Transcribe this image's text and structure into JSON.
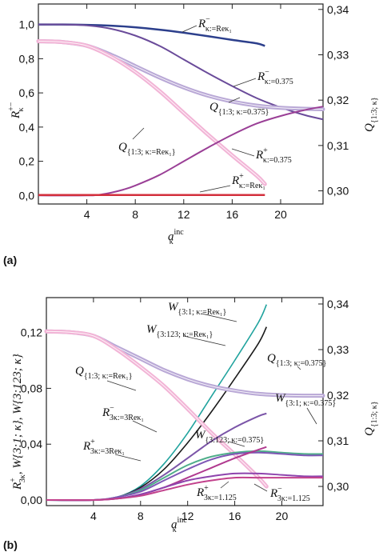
{
  "chart_data": [
    {
      "panel": "(a)",
      "type": "line",
      "xlabel": {
        "main": "a",
        "sup": "inc",
        "sub": "κ"
      },
      "ylabel_left": {
        "main": "R",
        "sup": "+−",
        "sub": "κ"
      },
      "ylabel_right": {
        "main": "Q",
        "sub": "{1:3; κ}"
      },
      "xlim": [
        0,
        23.5
      ],
      "ylim_left": [
        -0.05,
        1.12
      ],
      "ylim_right": [
        0.2971,
        0.3412
      ],
      "x_ticks": [
        4,
        8,
        12,
        16,
        20
      ],
      "y_ticks_left": [
        "0,0",
        "0,2",
        "0,4",
        "0,6",
        "0,8",
        "1,0"
      ],
      "y_tick_values_left": [
        0,
        0.2,
        0.4,
        0.6,
        0.8,
        1.0
      ],
      "y_ticks_right": [
        "0,30",
        "0,31",
        "0,32",
        "0,33",
        "0,34"
      ],
      "y_tick_values_right": [
        0.3,
        0.31,
        0.32,
        0.33,
        0.34
      ],
      "series": [
        {
          "color": "#2c3f8c",
          "width": 2.5,
          "axis": "left",
          "x": [
            0,
            2,
            4,
            6,
            8,
            10,
            12,
            14,
            16,
            18,
            18.7
          ],
          "y": [
            1.0,
            1.0,
            0.998,
            0.993,
            0.984,
            0.97,
            0.952,
            0.932,
            0.91,
            0.89,
            0.875
          ]
        },
        {
          "color": "#6a4b9a",
          "width": 2,
          "axis": "left",
          "x": [
            0,
            2,
            4,
            6,
            8,
            10,
            12,
            14,
            16,
            18,
            20,
            22,
            23.5
          ],
          "y": [
            1.0,
            1.0,
            0.995,
            0.975,
            0.935,
            0.875,
            0.795,
            0.715,
            0.64,
            0.57,
            0.515,
            0.47,
            0.445
          ]
        },
        {
          "color": "#b9a8d6",
          "width": 5,
          "axis": "right",
          "double": true,
          "x": [
            0,
            2,
            4,
            6,
            8,
            10,
            12,
            14,
            16,
            18,
            20,
            22,
            23.5
          ],
          "y": [
            0.333,
            0.3328,
            0.332,
            0.33,
            0.3275,
            0.325,
            0.3228,
            0.321,
            0.3197,
            0.3188,
            0.3183,
            0.3181,
            0.318
          ]
        },
        {
          "color": "#f2b4d6",
          "width": 5,
          "axis": "right",
          "double": true,
          "x": [
            0,
            2,
            4,
            6,
            8,
            10,
            12,
            14,
            16,
            18,
            18.7
          ],
          "y": [
            0.333,
            0.3328,
            0.332,
            0.3296,
            0.3262,
            0.322,
            0.3172,
            0.3124,
            0.3078,
            0.3034,
            0.3015
          ]
        },
        {
          "color": "#9a3f96",
          "width": 2,
          "axis": "left",
          "x": [
            0,
            4,
            5,
            6,
            7,
            8,
            10,
            12,
            14,
            16,
            18,
            20,
            22,
            23.5
          ],
          "y": [
            0,
            0,
            0.004,
            0.016,
            0.034,
            0.058,
            0.12,
            0.2,
            0.28,
            0.355,
            0.42,
            0.465,
            0.5,
            0.52
          ]
        },
        {
          "color": "#d32f3c",
          "width": 2.5,
          "axis": "left",
          "x": [
            0,
            4,
            8,
            12,
            16,
            18.7
          ],
          "y": [
            0.003,
            0.003,
            0.003,
            0.003,
            0.003,
            0.003
          ]
        }
      ],
      "annotations": [
        {
          "id": "a1",
          "main": "R",
          "sup": "−",
          "sub": "κ:=Reκ₁"
        },
        {
          "id": "a2",
          "main": "R",
          "sup": "−",
          "sub": "κ:=0.375"
        },
        {
          "id": "a3",
          "main": "Q",
          "sup": "",
          "sub": "{1:3; κ:=0.375}"
        },
        {
          "id": "a4",
          "main": "Q",
          "sup": "",
          "sub": "{1:3; κ:=Reκ₁}"
        },
        {
          "id": "a5",
          "main": "R",
          "sup": "+",
          "sub": "κ:=0.375"
        },
        {
          "id": "a6",
          "main": "R",
          "sup": "+",
          "sub": "κ:=Reκ₁"
        }
      ]
    },
    {
      "panel": "(b)",
      "type": "line",
      "xlabel": {
        "main": "a",
        "sup": "inc",
        "sub": "κ"
      },
      "ylabel_left": {
        "main": "R",
        "sup": "+",
        "sub": "3κ",
        "rest": ",  W{3:1; κ},  W{3:123; κ}"
      },
      "ylabel_right": {
        "main": "Q",
        "sub": "{1:3; κ}"
      },
      "xlim": [
        0,
        23.5
      ],
      "ylim_left": [
        -0.004,
        0.145
      ],
      "ylim_right": [
        0.2958,
        0.3414
      ],
      "x_ticks": [
        4,
        8,
        12,
        16,
        20
      ],
      "y_ticks_left": [
        "0,00",
        "0,04",
        "0,08",
        "0,12"
      ],
      "y_tick_values_left": [
        0,
        0.04,
        0.08,
        0.12
      ],
      "y_ticks_right": [
        "0,30",
        "0,31",
        "0,32",
        "0,33",
        "0,34"
      ],
      "y_tick_values_right": [
        0.3,
        0.31,
        0.32,
        0.33,
        0.34
      ],
      "series": [
        {
          "color": "#20a39e",
          "width": 1.6,
          "axis": "left",
          "x": [
            0,
            4,
            6,
            8,
            10,
            12,
            14,
            16,
            18,
            18.7
          ],
          "y": [
            0,
            0,
            0.002,
            0.01,
            0.026,
            0.048,
            0.074,
            0.1,
            0.127,
            0.14
          ]
        },
        {
          "color": "#1a1a1a",
          "width": 1.6,
          "axis": "left",
          "x": [
            0,
            4,
            6,
            8,
            10,
            12,
            14,
            16,
            18,
            18.7
          ],
          "y": [
            0,
            0,
            0.002,
            0.009,
            0.022,
            0.041,
            0.063,
            0.087,
            0.112,
            0.124
          ]
        },
        {
          "color": "#b9a8d6",
          "width": 5,
          "axis": "right",
          "double": true,
          "x": [
            0,
            2,
            4,
            6,
            8,
            10,
            12,
            14,
            16,
            18,
            20,
            22,
            23.5
          ],
          "y": [
            0.334,
            0.3338,
            0.333,
            0.3305,
            0.328,
            0.3255,
            0.3235,
            0.322,
            0.321,
            0.3203,
            0.32,
            0.3199,
            0.3199
          ]
        },
        {
          "color": "#f2b4d6",
          "width": 5,
          "axis": "right",
          "double": true,
          "x": [
            0,
            2,
            4,
            6,
            8,
            10,
            12,
            14,
            16,
            18,
            18.7
          ],
          "y": [
            0.334,
            0.3338,
            0.333,
            0.33,
            0.3262,
            0.322,
            0.317,
            0.3118,
            0.307,
            0.302,
            0.3
          ]
        },
        {
          "color": "#7b55a8",
          "width": 2,
          "axis": "left",
          "x": [
            0,
            4,
            6,
            8,
            10,
            12,
            14,
            16,
            18,
            18.7
          ],
          "y": [
            0,
            0,
            0.002,
            0.008,
            0.018,
            0.03,
            0.042,
            0.052,
            0.06,
            0.062
          ]
        },
        {
          "color": "#4fae8a",
          "width": 2,
          "axis": "left",
          "x": [
            0,
            4,
            6,
            8,
            10,
            12,
            14,
            16,
            18,
            20,
            22,
            23.5
          ],
          "y": [
            0,
            0,
            0.002,
            0.007,
            0.016,
            0.025,
            0.031,
            0.034,
            0.035,
            0.034,
            0.033,
            0.033
          ]
        },
        {
          "color": "#7e57b5",
          "width": 2,
          "axis": "left",
          "x": [
            0,
            4,
            6,
            8,
            10,
            12,
            14,
            16,
            18,
            20,
            22,
            23.5
          ],
          "y": [
            0,
            0,
            0.002,
            0.006,
            0.014,
            0.022,
            0.029,
            0.033,
            0.034,
            0.033,
            0.032,
            0.032
          ]
        },
        {
          "color": "#b03a8f",
          "width": 2,
          "axis": "left",
          "x": [
            0,
            4,
            6,
            8,
            10,
            12,
            14,
            16,
            18,
            18.7
          ],
          "y": [
            0,
            0,
            0.001,
            0.004,
            0.009,
            0.016,
            0.023,
            0.03,
            0.036,
            0.038
          ]
        },
        {
          "color": "#8e44ad",
          "width": 2,
          "axis": "left",
          "x": [
            0,
            4,
            6,
            8,
            10,
            12,
            14,
            16,
            18,
            20,
            22,
            23.5
          ],
          "y": [
            0,
            0,
            0.001,
            0.004,
            0.009,
            0.014,
            0.017,
            0.019,
            0.019,
            0.018,
            0.017,
            0.017
          ]
        },
        {
          "color": "#c2418c",
          "width": 2,
          "axis": "left",
          "x": [
            0,
            4,
            6,
            8,
            10,
            12,
            14,
            16,
            18,
            20,
            22,
            23.5
          ],
          "y": [
            0,
            0,
            0.001,
            0.003,
            0.007,
            0.011,
            0.014,
            0.016,
            0.016,
            0.016,
            0.016,
            0.016
          ]
        }
      ],
      "annotations": [
        {
          "id": "b1",
          "main": "W",
          "sup": "",
          "sub": "{3:1; κ:=Reκ₁}"
        },
        {
          "id": "b2",
          "main": "W",
          "sup": "",
          "sub": "{3:123; κ:=Reκ₁}"
        },
        {
          "id": "b3",
          "main": "Q",
          "sup": "",
          "sub": "{1:3; κ:=0.375}"
        },
        {
          "id": "b4",
          "main": "Q",
          "sup": "",
          "sub": "{1:3; κ:=Reκ₁}"
        },
        {
          "id": "b5",
          "main": "W",
          "sup": "",
          "sub": "{3:1; κ:=0.375}"
        },
        {
          "id": "b6",
          "main": "R",
          "sup": "−",
          "sub": "3κ:=3Reκ₁"
        },
        {
          "id": "b7",
          "main": "W",
          "sup": "",
          "sub": "{3:123; κ:=0.375}"
        },
        {
          "id": "b8",
          "main": "R",
          "sup": "+",
          "sub": "3κ:=3Reκ₁"
        },
        {
          "id": "b9",
          "main": "R",
          "sup": "+",
          "sub": "3κ:=1.125"
        },
        {
          "id": "b10",
          "main": "R",
          "sup": "−",
          "sub": "3κ:=1.125"
        }
      ]
    }
  ]
}
